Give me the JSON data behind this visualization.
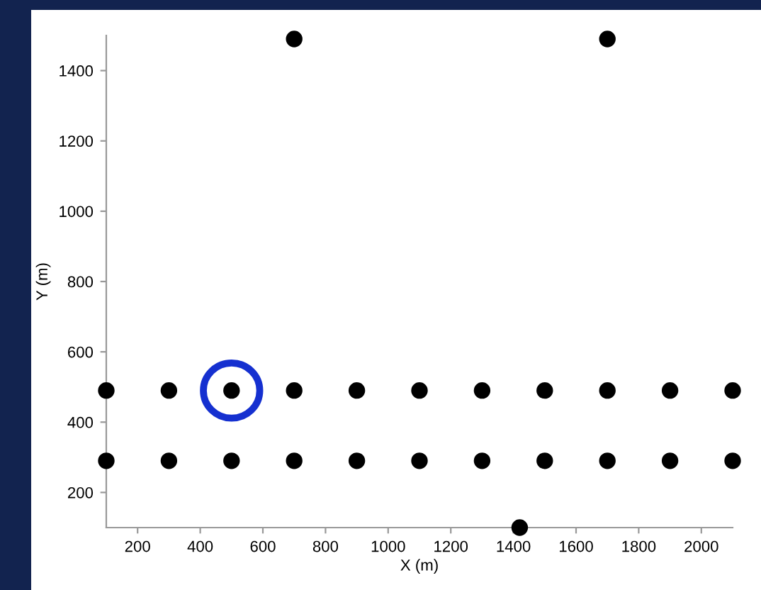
{
  "chart_data": {
    "type": "scatter",
    "xlabel": "X (m)",
    "ylabel": "Y (m)",
    "xlim": [
      100,
      2100
    ],
    "ylim": [
      100,
      1500
    ],
    "xticks": [
      200,
      400,
      600,
      800,
      1000,
      1200,
      1400,
      1600,
      1800,
      2000
    ],
    "yticks": [
      200,
      400,
      600,
      800,
      1000,
      1200,
      1400
    ],
    "grid": false,
    "marker": "circle",
    "series": [
      {
        "color": "#000000",
        "x": [
          100,
          300,
          500,
          700,
          900,
          1100,
          1300,
          1500,
          1700,
          1900,
          2100,
          100,
          300,
          500,
          700,
          900,
          1100,
          1300,
          1500,
          1700,
          1900,
          2100,
          700,
          1700,
          1420
        ],
        "values": [
          490,
          490,
          490,
          490,
          490,
          490,
          490,
          490,
          490,
          490,
          490,
          290,
          290,
          290,
          290,
          290,
          290,
          290,
          290,
          290,
          290,
          290,
          1490,
          1490,
          100
        ]
      }
    ]
  }
}
